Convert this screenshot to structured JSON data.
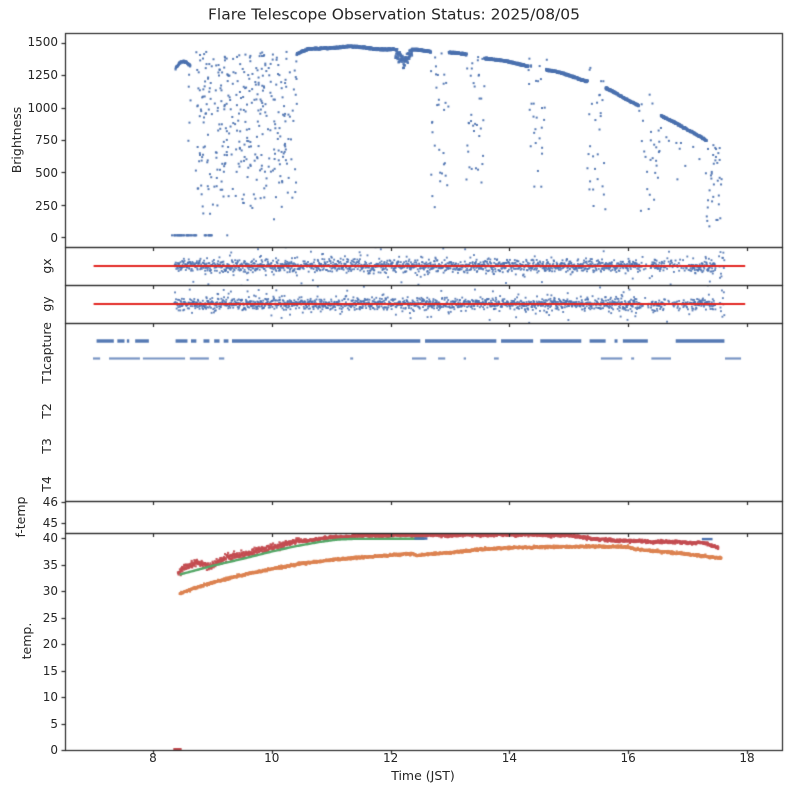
{
  "title": "Flare Telescope Observation Status: 2025/08/05",
  "colors": {
    "scatter_blue": "#4C72B0",
    "guide_red": "#E32722",
    "curve_red": "#C44E52",
    "curve_green": "#55A868",
    "curve_orange": "#DD8452",
    "spine": "#262626",
    "text": "#262626"
  },
  "axes": {
    "brightness": {
      "label": "Brightness",
      "yticks": [
        "1500",
        "1250",
        "1000",
        "750",
        "500",
        "250",
        "0"
      ]
    },
    "gx": {
      "label": "gx"
    },
    "gy": {
      "label": "gy"
    },
    "tracks": {
      "rows": [
        "capture",
        "T1",
        "T2",
        "T3",
        "T4"
      ]
    },
    "ftemp": {
      "label": "f-temp",
      "yticks": [
        "46",
        "45"
      ]
    },
    "temp": {
      "label": "temp.",
      "yticks": [
        "40",
        "35",
        "30",
        "25",
        "20",
        "15",
        "10",
        "5",
        "0"
      ]
    },
    "x": {
      "label": "Time (JST)",
      "ticks": [
        "8",
        "10",
        "12",
        "14",
        "16",
        "18"
      ]
    }
  },
  "chart_data": {
    "type": "scatter",
    "subtype": "multi_panel_timeseries",
    "xlim": [
      6.52,
      18.59
    ],
    "xticks": [
      8,
      10,
      12,
      14,
      16,
      18
    ],
    "panels": {
      "brightness": {
        "type": "scatter",
        "ylim": [
          -75,
          1575
        ],
        "zero_ranges": [
          [
            8.32,
            8.74
          ],
          [
            8.87,
            9.0
          ]
        ],
        "zero_dots": [
          9.25
        ],
        "early_arc": [
          [
            8.38,
            1300
          ],
          [
            8.45,
            1345
          ],
          [
            8.52,
            1356
          ],
          [
            8.58,
            1342
          ],
          [
            8.63,
            1318
          ]
        ],
        "early_column": [
          8.59,
          8.66,
          740,
          1300
        ],
        "morning": {
          "t0": 8.72,
          "t1": 10.42,
          "vmin": 130,
          "vmax": 1430
        },
        "arc": [
          [
            10.42,
            1408
          ],
          [
            10.6,
            1445
          ],
          [
            10.9,
            1463
          ],
          [
            11.2,
            1468
          ],
          [
            11.6,
            1459
          ],
          [
            12.0,
            1452
          ],
          [
            12.12,
            1448
          ],
          [
            12.22,
            1382
          ],
          [
            12.32,
            1441
          ],
          [
            12.5,
            1446
          ],
          [
            12.68,
            1436
          ],
          [
            12.98,
            1421
          ],
          [
            13.1,
            1416
          ],
          [
            13.28,
            1406
          ],
          [
            13.58,
            1386
          ],
          [
            13.8,
            1366
          ],
          [
            14.0,
            1346
          ],
          [
            14.32,
            1321
          ],
          [
            14.62,
            1291
          ],
          [
            15.0,
            1246
          ],
          [
            15.32,
            1206
          ],
          [
            15.62,
            1146
          ],
          [
            15.9,
            1081
          ],
          [
            16.18,
            1021
          ],
          [
            16.55,
            931
          ],
          [
            16.8,
            881
          ],
          [
            17.0,
            836
          ],
          [
            17.2,
            781
          ],
          [
            17.35,
            731
          ],
          [
            17.45,
            701
          ],
          [
            17.5,
            645
          ]
        ],
        "clouds": [
          [
            12.68,
            12.98,
            170,
            1430,
            0.5
          ],
          [
            13.28,
            13.58,
            400,
            1400,
            0.5
          ],
          [
            14.32,
            14.62,
            300,
            1380,
            0.45
          ],
          [
            15.32,
            15.62,
            100,
            1330,
            0.45
          ],
          [
            16.18,
            16.55,
            100,
            1100,
            0.4
          ],
          [
            17.32,
            17.58,
            50,
            720,
            0.55
          ]
        ]
      },
      "gx": {
        "type": "scatter",
        "t0": 8.36,
        "t1": 17.47,
        "guide_line": {
          "value": 0,
          "t0": 7.0,
          "t1": 17.97
        },
        "sparse": [
          [
            16.2,
            16.38,
            0.75
          ],
          [
            16.62,
            17.05,
            0.55
          ]
        ],
        "end_burst": [
          17.53,
          17.62
        ]
      },
      "gy": {
        "type": "scatter",
        "t0": 8.36,
        "t1": 17.47,
        "guide_line": {
          "value": 0,
          "t0": 7.0,
          "t1": 17.97
        },
        "sparse": [
          [
            16.2,
            16.38,
            0.75
          ],
          [
            16.62,
            17.05,
            0.55
          ]
        ],
        "end_burst": [
          17.53,
          17.62
        ]
      },
      "tracks": {
        "type": "event_segments",
        "capture_segments": [
          [
            7.05,
            7.34
          ],
          [
            7.4,
            7.52
          ],
          [
            7.56,
            7.6
          ],
          [
            7.7,
            7.93
          ],
          [
            8.38,
            8.58
          ],
          [
            8.64,
            8.73
          ],
          [
            8.85,
            8.95
          ],
          [
            9.03,
            9.12
          ],
          [
            9.19,
            9.27
          ],
          [
            9.33,
            12.5
          ],
          [
            12.58,
            13.78
          ],
          [
            13.86,
            14.4
          ],
          [
            14.52,
            15.21
          ],
          [
            15.35,
            15.62
          ],
          [
            15.77,
            15.82
          ],
          [
            15.91,
            16.33
          ],
          [
            16.8,
            17.62
          ]
        ],
        "t1_segments": [
          [
            6.99,
            7.11
          ],
          [
            7.26,
            7.78
          ],
          [
            7.83,
            8.54
          ],
          [
            8.62,
            8.94
          ],
          [
            9.11,
            9.2
          ],
          [
            11.32,
            11.37
          ],
          [
            12.36,
            12.6
          ],
          [
            12.8,
            12.92
          ],
          [
            13.23,
            13.27
          ],
          [
            13.74,
            13.82
          ],
          [
            15.54,
            15.9
          ],
          [
            16.05,
            16.1
          ],
          [
            16.39,
            16.72
          ],
          [
            17.63,
            17.9
          ]
        ]
      },
      "ftemp": {
        "type": "scatter",
        "ylim": [
          44.52,
          46.06
        ],
        "series": []
      },
      "temp": {
        "type": "scatter",
        "ylim": [
          0,
          41
        ],
        "red_zero_range": [
          8.36,
          8.47
        ],
        "series": [
          {
            "name": "mirror_red",
            "color": "#C44E52",
            "noise_early": 0.3,
            "noise_late": 0.14,
            "anchors": [
              [
                8.42,
                33.4
              ],
              [
                8.5,
                34.3
              ],
              [
                8.62,
                34.9
              ],
              [
                8.75,
                35.3
              ],
              [
                8.85,
                35.0
              ],
              [
                8.95,
                34.7
              ],
              [
                9.05,
                35.3
              ],
              [
                9.2,
                36.1
              ],
              [
                9.35,
                36.6
              ],
              [
                9.5,
                36.9
              ],
              [
                9.65,
                37.3
              ],
              [
                9.8,
                37.7
              ],
              [
                10.0,
                38.2
              ],
              [
                10.2,
                38.9
              ],
              [
                10.4,
                39.4
              ],
              [
                10.6,
                39.6
              ],
              [
                10.8,
                39.9
              ],
              [
                11.0,
                40.1
              ],
              [
                11.3,
                40.4
              ],
              [
                11.8,
                40.55
              ],
              [
                12.5,
                40.6
              ],
              [
                13.0,
                40.55
              ],
              [
                13.5,
                40.65
              ],
              [
                14.0,
                40.7
              ],
              [
                14.5,
                40.65
              ],
              [
                15.0,
                40.5
              ],
              [
                15.2,
                40.3
              ],
              [
                15.5,
                39.8
              ],
              [
                15.8,
                39.6
              ],
              [
                16.1,
                39.45
              ],
              [
                16.5,
                39.35
              ],
              [
                16.9,
                39.25
              ],
              [
                17.2,
                39.15
              ],
              [
                17.32,
                39.0
              ],
              [
                17.4,
                38.6
              ],
              [
                17.52,
                38.3
              ]
            ]
          },
          {
            "name": "setpoint_green",
            "color": "#55A868",
            "anchors": [
              [
                8.45,
                33.15
              ],
              [
                9.0,
                34.8
              ],
              [
                9.5,
                36.1
              ],
              [
                10.0,
                37.5
              ],
              [
                10.4,
                38.5
              ],
              [
                10.8,
                39.3
              ],
              [
                11.1,
                39.75
              ],
              [
                11.35,
                39.88
              ],
              [
                12.58,
                39.92
              ]
            ]
          },
          {
            "name": "aux_blue",
            "color": "#4C72B0",
            "segments": [
              [
                12.4,
                12.62,
                39.95
              ],
              [
                17.24,
                17.42,
                39.85
              ]
            ]
          },
          {
            "name": "air_orange",
            "color": "#DD8452",
            "noise": 0.11,
            "anchors": [
              [
                8.45,
                29.5
              ],
              [
                8.7,
                30.6
              ],
              [
                9.0,
                31.6
              ],
              [
                9.3,
                32.5
              ],
              [
                9.6,
                33.3
              ],
              [
                10.0,
                34.2
              ],
              [
                10.5,
                35.2
              ],
              [
                11.0,
                35.9
              ],
              [
                11.5,
                36.4
              ],
              [
                12.0,
                36.8
              ],
              [
                12.38,
                37.1
              ],
              [
                12.44,
                36.7
              ],
              [
                12.6,
                37.0
              ],
              [
                13.0,
                37.3
              ],
              [
                13.5,
                37.9
              ],
              [
                14.0,
                38.2
              ],
              [
                14.5,
                38.35
              ],
              [
                15.0,
                38.4
              ],
              [
                15.5,
                38.45
              ],
              [
                16.0,
                38.35
              ],
              [
                16.08,
                38.0
              ],
              [
                16.2,
                37.8
              ],
              [
                16.5,
                37.55
              ],
              [
                17.0,
                37.0
              ],
              [
                17.3,
                36.6
              ],
              [
                17.57,
                36.2
              ]
            ]
          }
        ]
      }
    }
  }
}
